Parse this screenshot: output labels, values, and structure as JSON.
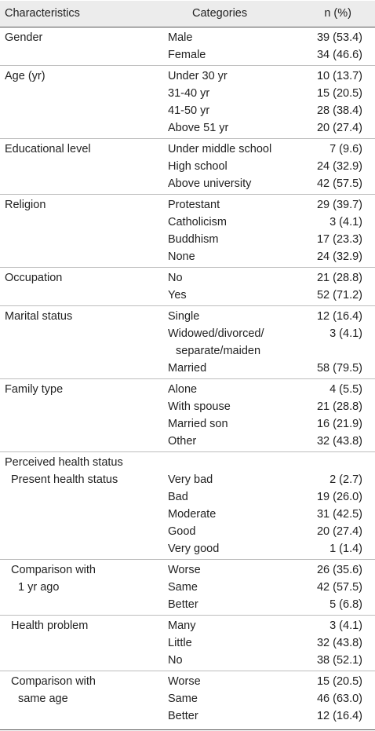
{
  "header": {
    "characteristics": "Characteristics",
    "categories": "Categories",
    "n_pct": "n (%)"
  },
  "groups": [
    {
      "label": "Gender",
      "rows": [
        {
          "cat": "Male",
          "n": "39 (53.4)"
        },
        {
          "cat": "Female",
          "n": "34 (46.6)"
        }
      ]
    },
    {
      "label": "Age (yr)",
      "rows": [
        {
          "cat": "Under 30 yr",
          "n": "10 (13.7)"
        },
        {
          "cat": "31-40 yr",
          "n": "15 (20.5)"
        },
        {
          "cat": "41-50 yr",
          "n": "28 (38.4)"
        },
        {
          "cat": "Above 51 yr",
          "n": "20 (27.4)"
        }
      ]
    },
    {
      "label": "Educational level",
      "rows": [
        {
          "cat": "Under middle school",
          "n": "7 (9.6)"
        },
        {
          "cat": "High school",
          "n": "24 (32.9)"
        },
        {
          "cat": "Above university",
          "n": "42 (57.5)"
        }
      ]
    },
    {
      "label": "Religion",
      "rows": [
        {
          "cat": "Protestant",
          "n": "29 (39.7)"
        },
        {
          "cat": "Catholicism",
          "n": "3 (4.1)"
        },
        {
          "cat": "Buddhism",
          "n": "17 (23.3)"
        },
        {
          "cat": "None",
          "n": "24 (32.9)"
        }
      ]
    },
    {
      "label": "Occupation",
      "rows": [
        {
          "cat": "No",
          "n": "21 (28.8)"
        },
        {
          "cat": "Yes",
          "n": "52 (71.2)"
        }
      ]
    },
    {
      "label": "Marital status",
      "rows": [
        {
          "cat": "Single",
          "n": "12 (16.4)"
        },
        {
          "cat": "Widowed/divorced/",
          "cat2": "separate/maiden",
          "n": "3 (4.1)"
        },
        {
          "cat": "Married",
          "n": "58 (79.5)"
        }
      ]
    },
    {
      "label": "Family type",
      "rows": [
        {
          "cat": "Alone",
          "n": "4 (5.5)"
        },
        {
          "cat": "With spouse",
          "n": "21 (28.8)"
        },
        {
          "cat": "Married son",
          "n": "16 (21.9)"
        },
        {
          "cat": "Other",
          "n": "32 (43.8)"
        }
      ]
    },
    {
      "label": "Perceived health status",
      "rows": []
    },
    {
      "label": "Present health status",
      "sub": true,
      "nosep": true,
      "rows": [
        {
          "cat": "Very bad",
          "n": "2 (2.7)"
        },
        {
          "cat": "Bad",
          "n": "19 (26.0)"
        },
        {
          "cat": "Moderate",
          "n": "31 (42.5)"
        },
        {
          "cat": "Good",
          "n": "20 (27.4)"
        },
        {
          "cat": "Very good",
          "n": "1 (1.4)"
        }
      ]
    },
    {
      "label": "Comparison with",
      "label2": "1 yr ago",
      "sub": true,
      "rows": [
        {
          "cat": "Worse",
          "n": "26 (35.6)"
        },
        {
          "cat": "Same",
          "n": "42 (57.5)"
        },
        {
          "cat": "Better",
          "n": "5 (6.8)"
        }
      ]
    },
    {
      "label": "Health problem",
      "sub": true,
      "rows": [
        {
          "cat": "Many",
          "n": "3 (4.1)"
        },
        {
          "cat": "Little",
          "n": "32 (43.8)"
        },
        {
          "cat": "No",
          "n": "38 (52.1)"
        }
      ]
    },
    {
      "label": "Comparison with",
      "label2": "same age",
      "sub": true,
      "rows": [
        {
          "cat": "Worse",
          "n": "15 (20.5)"
        },
        {
          "cat": "Same",
          "n": "46 (63.0)"
        },
        {
          "cat": "Better",
          "n": "12 (16.4)"
        }
      ]
    }
  ]
}
